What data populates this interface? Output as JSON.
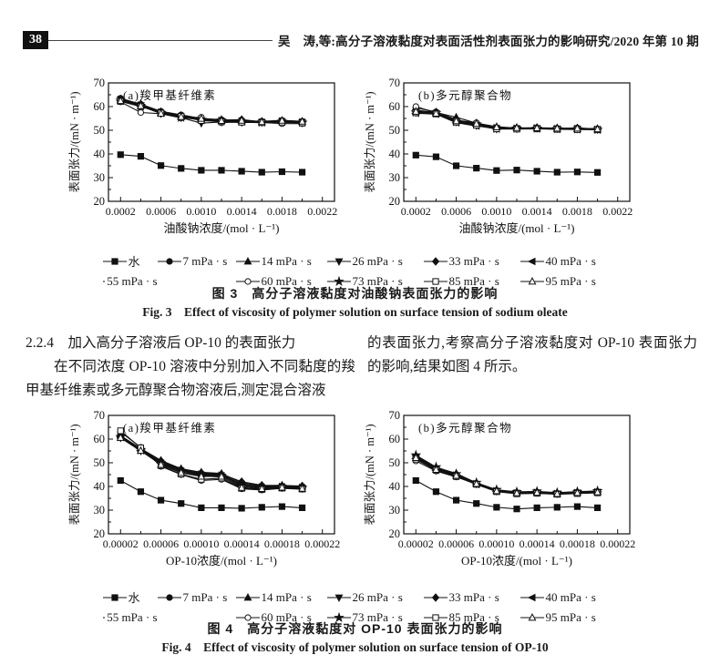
{
  "page": {
    "number": "38",
    "header": "吴　涛,等:高分子溶液黏度对表面活性剂表面张力的影响研究/2020 年第 10 期"
  },
  "section": {
    "heading": "2.2.4　加入高分子溶液后 OP-10 的表面张力",
    "paragraph_left": "在不同浓度 OP-10 溶液中分别加入不同黏度的羧甲基纤维素或多元醇聚合物溶液后,测定混合溶液",
    "paragraph_right": "的表面张力,考察高分子溶液黏度对 OP-10 表面张力的影响,结果如图 4 所示。"
  },
  "figure3": {
    "caption_zh": "图 3　高分子溶液黏度对油酸钠表面张力的影响",
    "caption_en": "Fig. 3　Effect of viscosity of polymer solution on surface tension of sodium oleate"
  },
  "figure4": {
    "caption_zh": "图 4　高分子溶液黏度对 OP-10 表面张力的影响",
    "caption_en": "Fig. 4　Effect of viscosity of polymer solution on surface tension of OP-10"
  },
  "legend_items": [
    {
      "label": "水",
      "marker": "square-filled"
    },
    {
      "label": "7 mPa · s",
      "marker": "circle-filled"
    },
    {
      "label": "14 mPa · s",
      "marker": "triangle-up-filled"
    },
    {
      "label": "26 mPa · s",
      "marker": "triangle-down-filled"
    },
    {
      "label": "33 mPa · s",
      "marker": "diamond-filled"
    },
    {
      "label": "40 mPa · s",
      "marker": "triangle-left-filled"
    },
    {
      "label": "55 mPa · s",
      "marker": "triangle-right-filled"
    },
    {
      "label": "60 mPa · s",
      "marker": "circle-open"
    },
    {
      "label": "73 mPa · s",
      "marker": "star-filled"
    },
    {
      "label": "85 mPa · s",
      "marker": "square-open"
    },
    {
      "label": "95 mPa · s",
      "marker": "triangle-up-open"
    }
  ],
  "chart_data": [
    {
      "id": "fig3a",
      "type": "line",
      "title": "(a)羧甲基纤维素",
      "xlabel": "油酸钠浓度/(mol · L⁻¹)",
      "ylabel": "表面张力/(mN · m⁻¹)",
      "xlim": [
        8e-05,
        0.00232
      ],
      "ylim": [
        20,
        70
      ],
      "xticks": [
        0.0002,
        0.0006,
        0.001,
        0.0014,
        0.0018,
        0.0022
      ],
      "xtick_labels": [
        "0.0002",
        "0.0006",
        "0.0010",
        "0.0014",
        "0.0018",
        "0.0022"
      ],
      "yticks": [
        20,
        30,
        40,
        50,
        60,
        70
      ],
      "grid": false,
      "x": [
        0.0002,
        0.0004,
        0.0006,
        0.0008,
        0.001,
        0.0012,
        0.0014,
        0.0016,
        0.0018,
        0.002
      ],
      "series": [
        {
          "name": "水",
          "values": [
            39.7,
            39.0,
            35.1,
            33.9,
            33.1,
            33.1,
            32.7,
            32.3,
            32.5,
            32.3
          ]
        },
        {
          "name": "7 mPa · s",
          "values": [
            63.5,
            61.0,
            58.0,
            56.5,
            55.0,
            54.5,
            54.0,
            53.8,
            54.2,
            53.8
          ]
        },
        {
          "name": "14 mPa · s",
          "values": [
            63.0,
            61.2,
            57.5,
            56.0,
            54.5,
            54.0,
            53.8,
            53.5,
            53.8,
            53.5
          ]
        },
        {
          "name": "26 mPa · s",
          "values": [
            62.8,
            60.5,
            57.0,
            55.3,
            53.0,
            53.5,
            53.3,
            53.3,
            53.5,
            53.2
          ]
        },
        {
          "name": "33 mPa · s",
          "values": [
            63.2,
            60.8,
            57.8,
            56.2,
            54.8,
            54.3,
            54.5,
            53.6,
            54.0,
            53.6
          ]
        },
        {
          "name": "40 mPa · s",
          "values": [
            62.5,
            60.2,
            57.2,
            55.8,
            54.2,
            53.8,
            53.5,
            53.4,
            53.6,
            53.4
          ]
        },
        {
          "name": "55 mPa · s",
          "values": [
            63.0,
            60.6,
            57.6,
            55.6,
            54.6,
            54.1,
            53.9,
            53.5,
            53.9,
            53.5
          ]
        },
        {
          "name": "60 mPa · s",
          "values": [
            62.0,
            57.5,
            57.0,
            55.2,
            55.5,
            53.2,
            53.6,
            53.3,
            52.8,
            52.8
          ]
        },
        {
          "name": "73 mPa · s",
          "values": [
            62.6,
            60.4,
            57.4,
            55.4,
            54.4,
            54.2,
            53.7,
            53.4,
            53.7,
            53.3
          ]
        },
        {
          "name": "85 mPa · s",
          "values": [
            62.2,
            60.0,
            57.3,
            55.9,
            54.1,
            53.6,
            53.4,
            53.2,
            53.4,
            53.1
          ]
        },
        {
          "name": "95 mPa · s",
          "values": [
            62.4,
            60.3,
            57.1,
            55.7,
            54.9,
            54.0,
            54.1,
            53.5,
            54.1,
            53.7
          ]
        }
      ]
    },
    {
      "id": "fig3b",
      "type": "line",
      "title": "(b)多元醇聚合物",
      "xlabel": "油酸钠浓度/(mol · L⁻¹)",
      "ylabel": "表面张力/(mN · m⁻¹)",
      "xlim": [
        8e-05,
        0.00232
      ],
      "ylim": [
        20,
        70
      ],
      "xticks": [
        0.0002,
        0.0006,
        0.001,
        0.0014,
        0.0018,
        0.0022
      ],
      "xtick_labels": [
        "0.0002",
        "0.0006",
        "0.0010",
        "0.0014",
        "0.0018",
        "0.0022"
      ],
      "yticks": [
        20,
        30,
        40,
        50,
        60,
        70
      ],
      "grid": false,
      "x": [
        0.0002,
        0.0004,
        0.0006,
        0.0008,
        0.001,
        0.0012,
        0.0014,
        0.0016,
        0.0018,
        0.002
      ],
      "series": [
        {
          "name": "水",
          "values": [
            39.5,
            38.8,
            35.0,
            34.0,
            33.0,
            33.2,
            32.7,
            32.3,
            32.4,
            32.2
          ]
        },
        {
          "name": "7 mPa · s",
          "values": [
            59.5,
            57.8,
            54.5,
            52.5,
            51.0,
            50.8,
            51.0,
            50.8,
            50.8,
            50.5
          ]
        },
        {
          "name": "14 mPa · s",
          "values": [
            58.0,
            57.5,
            55.5,
            53.0,
            51.5,
            50.9,
            50.9,
            50.7,
            50.6,
            50.4
          ]
        },
        {
          "name": "26 mPa · s",
          "values": [
            57.5,
            57.2,
            53.5,
            52.0,
            50.5,
            50.6,
            50.8,
            50.6,
            50.5,
            50.3
          ]
        },
        {
          "name": "33 mPa · s",
          "values": [
            58.5,
            57.6,
            53.8,
            52.2,
            51.2,
            51.0,
            51.1,
            50.9,
            50.9,
            50.6
          ]
        },
        {
          "name": "40 mPa · s",
          "values": [
            57.2,
            56.8,
            53.2,
            51.8,
            50.8,
            50.7,
            50.7,
            50.5,
            50.4,
            50.3
          ]
        },
        {
          "name": "55 mPa · s",
          "values": [
            57.8,
            57.0,
            54.0,
            52.4,
            51.1,
            50.9,
            51.0,
            50.7,
            50.7,
            50.4
          ]
        },
        {
          "name": "60 mPa · s",
          "values": [
            60.0,
            57.4,
            54.2,
            53.2,
            50.9,
            50.8,
            50.9,
            50.4,
            51.0,
            50.5
          ]
        },
        {
          "name": "73 mPa · s",
          "values": [
            57.6,
            57.3,
            53.6,
            52.6,
            50.7,
            50.8,
            50.8,
            50.6,
            50.5,
            50.3
          ]
        },
        {
          "name": "85 mPa · s",
          "values": [
            57.4,
            56.9,
            53.4,
            52.1,
            50.6,
            50.5,
            50.6,
            50.4,
            50.3,
            50.2
          ]
        },
        {
          "name": "95 mPa · s",
          "values": [
            57.9,
            57.1,
            53.9,
            52.8,
            51.3,
            51.0,
            50.9,
            50.8,
            50.8,
            50.5
          ]
        }
      ]
    },
    {
      "id": "fig4a",
      "type": "line",
      "title": "(a)羧甲基纤维素",
      "xlabel": "OP-10浓度/(mol · L⁻¹)",
      "ylabel": "表面张力/(mN · m⁻¹)",
      "xlim": [
        8e-06,
        0.000232
      ],
      "ylim": [
        20,
        70
      ],
      "xticks": [
        2e-05,
        6e-05,
        0.0001,
        0.00014,
        0.00018,
        0.00022
      ],
      "xtick_labels": [
        "0.00002",
        "0.00006",
        "0.00010",
        "0.00014",
        "0.00018",
        "0.00022"
      ],
      "yticks": [
        20,
        30,
        40,
        50,
        60,
        70
      ],
      "grid": false,
      "x": [
        2e-05,
        4e-05,
        6e-05,
        8e-05,
        0.0001,
        0.00012,
        0.00014,
        0.00016,
        0.00018,
        0.0002
      ],
      "series": [
        {
          "name": "水",
          "values": [
            42.5,
            37.8,
            34.2,
            32.8,
            31.0,
            31.0,
            30.8,
            31.2,
            31.5,
            31.0
          ]
        },
        {
          "name": "7 mPa · s",
          "values": [
            61.0,
            55.5,
            50.5,
            47.0,
            45.5,
            45.0,
            41.0,
            40.0,
            40.2,
            39.8
          ]
        },
        {
          "name": "14 mPa · s",
          "values": [
            61.5,
            56.0,
            51.0,
            47.5,
            46.0,
            45.5,
            41.5,
            40.3,
            40.5,
            40.0
          ]
        },
        {
          "name": "26 mPa · s",
          "values": [
            60.5,
            55.0,
            49.5,
            46.0,
            44.5,
            44.0,
            40.0,
            39.2,
            39.5,
            39.2
          ]
        },
        {
          "name": "33 mPa · s",
          "values": [
            61.2,
            55.8,
            50.8,
            47.2,
            45.8,
            45.2,
            42.0,
            40.5,
            40.3,
            40.2
          ]
        },
        {
          "name": "40 mPa · s",
          "values": [
            60.8,
            55.2,
            49.8,
            46.5,
            44.8,
            44.5,
            40.5,
            39.5,
            39.8,
            39.4
          ]
        },
        {
          "name": "55 mPa · s",
          "values": [
            61.3,
            55.6,
            50.2,
            46.8,
            45.2,
            44.8,
            40.8,
            39.8,
            40.0,
            39.6
          ]
        },
        {
          "name": "60 mPa · s",
          "values": [
            63.0,
            56.5,
            48.5,
            45.0,
            42.5,
            43.0,
            39.0,
            38.5,
            39.2,
            38.8
          ]
        },
        {
          "name": "73 mPa · s",
          "values": [
            60.9,
            55.4,
            50.0,
            46.6,
            45.0,
            44.6,
            40.6,
            39.6,
            39.9,
            39.5
          ]
        },
        {
          "name": "85 mPa · s",
          "values": [
            63.5,
            56.3,
            48.8,
            45.2,
            43.0,
            43.5,
            39.2,
            38.7,
            39.3,
            38.9
          ]
        },
        {
          "name": "95 mPa · s",
          "values": [
            60.6,
            55.1,
            49.2,
            45.8,
            44.2,
            44.2,
            39.5,
            39.0,
            39.6,
            39.1
          ]
        }
      ]
    },
    {
      "id": "fig4b",
      "type": "line",
      "title": "(b)多元醇聚合物",
      "xlabel": "OP-10浓度/(mol · L⁻¹)",
      "ylabel": "表面张力/(mN · m⁻¹)",
      "xlim": [
        8e-06,
        0.000232
      ],
      "ylim": [
        20,
        70
      ],
      "xticks": [
        2e-05,
        6e-05,
        0.0001,
        0.00014,
        0.00018,
        0.00022
      ],
      "xtick_labels": [
        "0.00002",
        "0.00006",
        "0.00010",
        "0.00014",
        "0.00018",
        "0.00022"
      ],
      "yticks": [
        20,
        30,
        40,
        50,
        60,
        70
      ],
      "grid": false,
      "x": [
        2e-05,
        4e-05,
        6e-05,
        8e-05,
        0.0001,
        0.00012,
        0.00014,
        0.00016,
        0.00018,
        0.0002
      ],
      "series": [
        {
          "name": "水",
          "values": [
            42.5,
            37.8,
            34.2,
            32.8,
            31.2,
            30.5,
            31.0,
            31.2,
            31.5,
            31.0
          ]
        },
        {
          "name": "7 mPa · s",
          "values": [
            52.5,
            47.5,
            45.0,
            41.3,
            38.3,
            37.4,
            37.6,
            37.1,
            37.5,
            37.8
          ]
        },
        {
          "name": "14 mPa · s",
          "values": [
            53.0,
            48.0,
            45.5,
            41.5,
            38.5,
            37.6,
            37.8,
            37.3,
            37.7,
            38.0
          ]
        },
        {
          "name": "26 mPa · s",
          "values": [
            52.0,
            47.0,
            44.5,
            41.0,
            38.0,
            37.2,
            37.4,
            36.9,
            37.3,
            37.6
          ]
        },
        {
          "name": "33 mPa · s",
          "values": [
            52.8,
            47.8,
            45.2,
            41.4,
            38.4,
            37.5,
            37.7,
            37.2,
            37.6,
            37.9
          ]
        },
        {
          "name": "40 mPa · s",
          "values": [
            51.8,
            46.8,
            44.3,
            40.8,
            37.9,
            37.1,
            37.3,
            36.8,
            37.2,
            37.5
          ]
        },
        {
          "name": "55 mPa · s",
          "values": [
            52.3,
            47.3,
            44.8,
            41.2,
            38.2,
            37.3,
            37.5,
            37.0,
            37.4,
            37.7
          ]
        },
        {
          "name": "60 mPa · s",
          "values": [
            50.8,
            46.5,
            44.0,
            41.0,
            38.0,
            37.0,
            37.2,
            36.8,
            37.1,
            37.4
          ]
        },
        {
          "name": "73 mPa · s",
          "values": [
            53.2,
            48.2,
            45.3,
            41.6,
            38.6,
            37.7,
            37.9,
            37.4,
            37.8,
            38.1
          ]
        },
        {
          "name": "85 mPa · s",
          "values": [
            51.5,
            46.9,
            44.2,
            40.9,
            37.8,
            36.9,
            37.1,
            36.7,
            37.0,
            37.3
          ]
        },
        {
          "name": "95 mPa · s",
          "values": [
            52.1,
            47.1,
            44.6,
            41.1,
            38.1,
            37.2,
            37.4,
            36.9,
            37.3,
            37.6
          ]
        }
      ]
    }
  ]
}
